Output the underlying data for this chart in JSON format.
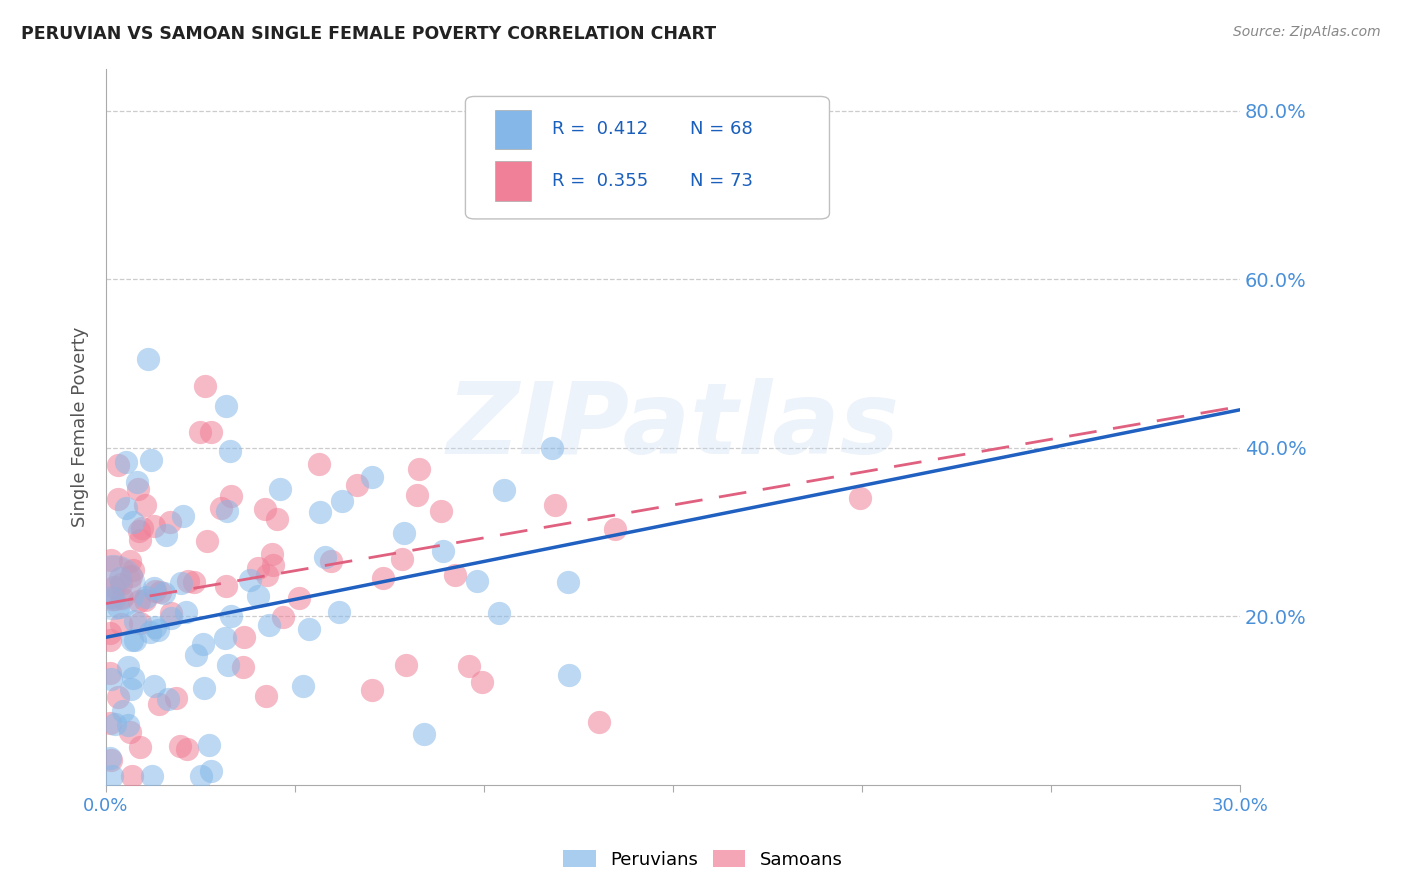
{
  "title": "PERUVIAN VS SAMOAN SINGLE FEMALE POVERTY CORRELATION CHART",
  "source": "Source: ZipAtlas.com",
  "ylabel": "Single Female Poverty",
  "xlabel": "",
  "xlim": [
    0.0,
    0.3
  ],
  "ylim": [
    0.0,
    0.85
  ],
  "xtick_vals": [
    0.0,
    0.05,
    0.1,
    0.15,
    0.2,
    0.25,
    0.3
  ],
  "xtick_labels_show": {
    "0.0": "0.0%",
    "0.30": "30.0%"
  },
  "ytick_labels": [
    "20.0%",
    "40.0%",
    "60.0%",
    "80.0%"
  ],
  "ytick_vals": [
    0.2,
    0.4,
    0.6,
    0.8
  ],
  "peruvian_color": "#85b8e8",
  "samoan_color": "#f08098",
  "peruvian_R": 0.412,
  "peruvian_N": 68,
  "samoan_R": 0.355,
  "samoan_N": 73,
  "legend_label_1": "Peruvians",
  "legend_label_2": "Samoans",
  "watermark": "ZIPatlas",
  "title_color": "#222222",
  "axis_color": "#4a90d9",
  "grid_color": "#cccccc",
  "reg_blue": "#2060c0",
  "reg_pink": "#e06080",
  "blue_intercept": 0.175,
  "blue_slope": 0.9,
  "pink_intercept": 0.215,
  "pink_slope": 0.78
}
